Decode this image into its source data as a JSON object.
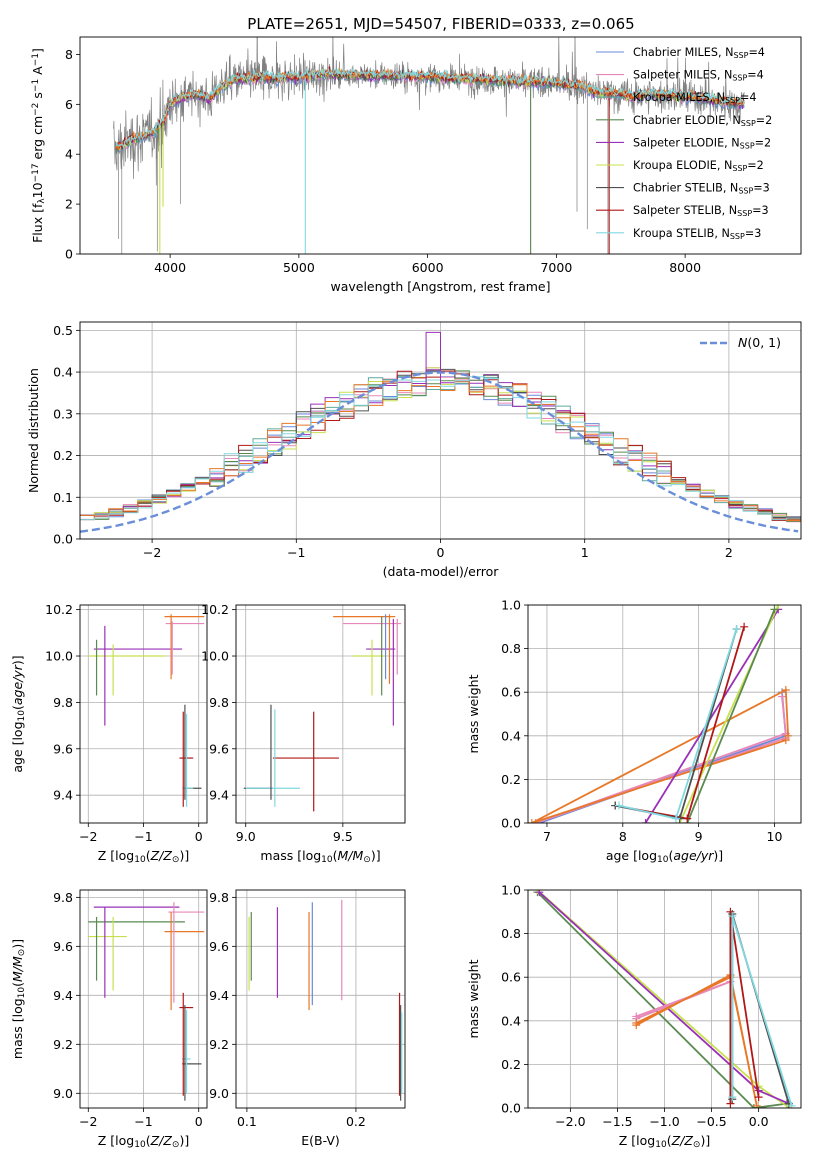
{
  "figure_title": "PLATE=2651, MJD=54507, FIBERID=0333, z=0.065",
  "colors": {
    "chab_miles": "#6a8ad8",
    "salp_miles": "#e888b8",
    "krou_miles": "#60a8a0",
    "chab_elodie": "#5a8a50",
    "salp_elodie": "#9a30b8",
    "krou_elodie": "#c8e050",
    "chab_stelib": "#505050",
    "salp_stelib": "#b01818",
    "krou_stelib": "#80d8e0",
    "orange": "#e87828",
    "data_gray": "#808080",
    "grid": "#b0b0b0"
  },
  "chart_data": [
    {
      "id": "spectrum",
      "type": "line",
      "xlabel": "wavelength [Angstrom, rest frame]",
      "ylabel": "Flux [f_λ10^-17 erg cm^-2 s^-1 A^-1]",
      "xlim": [
        3300,
        8900
      ],
      "ylim": [
        0,
        8.7
      ],
      "xticks": [
        "4000",
        "5000",
        "6000",
        "7000",
        "8000"
      ],
      "yticks": [
        "0",
        "2",
        "4",
        "6",
        "8"
      ],
      "legend_position": "right",
      "legend": [
        {
          "name": "Chabrier MILES, N",
          "sub": "SSP",
          "tail": "=4",
          "color": "chab_miles"
        },
        {
          "name": "Salpeter MILES, N",
          "sub": "SSP",
          "tail": "=4",
          "color": "salp_miles"
        },
        {
          "name": "Kroupa MILES, N",
          "sub": "SSP",
          "tail": "=4",
          "color": "krou_miles"
        },
        {
          "name": "Chabrier ELODIE, N",
          "sub": "SSP",
          "tail": "=2",
          "color": "chab_elodie"
        },
        {
          "name": "Salpeter ELODIE, N",
          "sub": "SSP",
          "tail": "=2",
          "color": "salp_elodie"
        },
        {
          "name": "Kroupa ELODIE, N",
          "sub": "SSP",
          "tail": "=2",
          "color": "krou_elodie"
        },
        {
          "name": "Chabrier STELIB, N",
          "sub": "SSP",
          "tail": "=3",
          "color": "chab_stelib"
        },
        {
          "name": "Salpeter STELIB, N",
          "sub": "SSP",
          "tail": "=3",
          "color": "salp_stelib"
        },
        {
          "name": "Kroupa STELIB, N",
          "sub": "SSP",
          "tail": "=3",
          "color": "krou_stelib"
        }
      ],
      "continuum": {
        "x": [
          3580,
          3650,
          3720,
          3800,
          3880,
          3950,
          4000,
          4100,
          4200,
          4300,
          4400,
          4500,
          4600,
          4700,
          4800,
          4900,
          5000,
          5200,
          5500,
          6000,
          6500,
          7000,
          7200,
          7300,
          7500,
          7600,
          7700,
          8000,
          8300,
          8460
        ],
        "y": [
          4.2,
          4.4,
          4.6,
          4.7,
          4.9,
          5.3,
          6.0,
          6.3,
          6.4,
          6.2,
          6.7,
          7.0,
          7.0,
          7.1,
          7.0,
          7.1,
          7.05,
          7.2,
          7.15,
          7.1,
          6.95,
          6.85,
          6.7,
          6.5,
          6.4,
          6.3,
          6.4,
          6.3,
          6.1,
          6.0
        ]
      },
      "models_x_start": 3580,
      "data_x_start": 3560
    },
    {
      "id": "residuals",
      "type": "line",
      "xlabel": "(data-model)/error",
      "ylabel": "Normed distribution",
      "xlim": [
        -2.5,
        2.5
      ],
      "ylim": [
        0,
        0.52
      ],
      "xticks": [
        "−2",
        "−1",
        "0",
        "1",
        "2"
      ],
      "yticks": [
        "0.0",
        "0.1",
        "0.2",
        "0.3",
        "0.4",
        "0.5"
      ],
      "legend_label": "N(0,1)",
      "legend_position": "upper-right",
      "gaussian": {
        "mu": 0,
        "sigma": 1
      }
    },
    {
      "id": "age_vs_Z",
      "type": "scatter",
      "xlabel": "Z [log10(Z/Z☉)]",
      "ylabel": "age  [log10(age/yr)]",
      "xlim": [
        -2.15,
        0.15
      ],
      "ylim": [
        9.28,
        10.22
      ],
      "xticks": [
        "−2",
        "−1",
        "0"
      ],
      "yticks": [
        "9.4",
        "9.6",
        "9.8",
        "10.0",
        "10.2"
      ],
      "h_errors": [
        {
          "y": 10.17,
          "x1": -0.62,
          "x2": 0.1,
          "color": "orange"
        },
        {
          "y": 10.14,
          "x1": -0.6,
          "x2": 0.1,
          "color": "salp_miles"
        },
        {
          "y": 10.03,
          "x1": -1.9,
          "x2": -0.3,
          "color": "salp_elodie"
        },
        {
          "y": 10.0,
          "x1": -2.0,
          "x2": -0.6,
          "color": "krou_elodie"
        },
        {
          "y": 9.56,
          "x1": -0.35,
          "x2": -0.1,
          "color": "salp_stelib"
        },
        {
          "y": 9.43,
          "x1": -0.25,
          "x2": 0.05,
          "color": "chab_stelib"
        },
        {
          "y": 9.43,
          "x1": -0.3,
          "x2": -0.1,
          "color": "krou_stelib"
        }
      ],
      "v_errors": [
        {
          "x": -1.7,
          "y1": 9.7,
          "y2": 10.13,
          "color": "salp_elodie"
        },
        {
          "x": -1.55,
          "y1": 9.83,
          "y2": 10.05,
          "color": "krou_elodie"
        },
        {
          "x": -1.85,
          "y1": 9.83,
          "y2": 10.07,
          "color": "chab_elodie"
        },
        {
          "x": -0.5,
          "y1": 9.9,
          "y2": 10.18,
          "color": "orange"
        },
        {
          "x": -0.48,
          "y1": 9.92,
          "y2": 10.15,
          "color": "salp_miles"
        },
        {
          "x": -0.28,
          "y1": 9.35,
          "y2": 9.76,
          "color": "salp_stelib"
        },
        {
          "x": -0.25,
          "y1": 9.38,
          "y2": 9.79,
          "color": "chab_stelib"
        },
        {
          "x": -0.22,
          "y1": 9.35,
          "y2": 9.75,
          "color": "krou_stelib"
        }
      ]
    },
    {
      "id": "age_vs_mass",
      "type": "scatter",
      "xlabel": "mass [log10(M/M☉)]",
      "ylabel": "",
      "xlim": [
        8.95,
        9.82
      ],
      "ylim": [
        9.28,
        10.22
      ],
      "xticks": [
        "9.0",
        "9.5"
      ],
      "yticks": [
        "9.4",
        "9.6",
        "9.8",
        "10.0",
        "10.2"
      ],
      "h_errors": [
        {
          "y": 10.17,
          "x1": 9.45,
          "x2": 9.77,
          "color": "orange"
        },
        {
          "y": 10.14,
          "x1": 9.5,
          "x2": 9.8,
          "color": "salp_miles"
        },
        {
          "y": 10.03,
          "x1": 9.62,
          "x2": 9.77,
          "color": "salp_elodie"
        },
        {
          "y": 10.0,
          "x1": 9.55,
          "x2": 9.72,
          "color": "krou_elodie"
        },
        {
          "y": 9.56,
          "x1": 9.14,
          "x2": 9.48,
          "color": "salp_stelib"
        },
        {
          "y": 9.43,
          "x1": 8.99,
          "x2": 9.14,
          "color": "chab_stelib"
        },
        {
          "y": 9.43,
          "x1": 9.0,
          "x2": 9.28,
          "color": "krou_stelib"
        }
      ],
      "v_errors": [
        {
          "x": 9.65,
          "y1": 9.83,
          "y2": 10.07,
          "color": "krou_elodie"
        },
        {
          "x": 9.7,
          "y1": 9.83,
          "y2": 10.17,
          "color": "chab_elodie"
        },
        {
          "x": 9.72,
          "y1": 9.9,
          "y2": 10.18,
          "color": "chab_miles"
        },
        {
          "x": 9.74,
          "y1": 9.88,
          "y2": 10.18,
          "color": "orange"
        },
        {
          "x": 9.76,
          "y1": 9.7,
          "y2": 10.16,
          "color": "salp_elodie"
        },
        {
          "x": 9.78,
          "y1": 9.92,
          "y2": 10.16,
          "color": "salp_miles"
        },
        {
          "x": 9.13,
          "y1": 9.38,
          "y2": 9.79,
          "color": "chab_stelib"
        },
        {
          "x": 9.15,
          "y1": 9.35,
          "y2": 9.77,
          "color": "krou_stelib"
        },
        {
          "x": 9.35,
          "y1": 9.33,
          "y2": 9.76,
          "color": "salp_stelib"
        }
      ]
    },
    {
      "id": "massweight_vs_age",
      "type": "line",
      "xlabel": "age  [log10(age/yr)]",
      "ylabel": "mass weight",
      "xlim": [
        6.75,
        10.35
      ],
      "ylim": [
        0,
        1
      ],
      "xticks": [
        "7",
        "8",
        "9",
        "10"
      ],
      "yticks": [
        "0.0",
        "0.2",
        "0.4",
        "0.6",
        "0.8",
        "1.0"
      ],
      "series": [
        {
          "color": "chab_miles",
          "x": [
            10.15,
            6.9,
            10.15,
            10.1
          ],
          "y": [
            0.4,
            0.0,
            0.4,
            0.6
          ]
        },
        {
          "color": "salp_miles",
          "x": [
            10.15,
            6.85,
            10.15,
            10.1
          ],
          "y": [
            0.39,
            0.0,
            0.41,
            0.58
          ]
        },
        {
          "color": "orange",
          "x": [
            10.15,
            6.8,
            10.15,
            10.18
          ],
          "y": [
            0.38,
            0.0,
            0.61,
            0.4
          ]
        },
        {
          "color": "salp_elodie",
          "x": [
            8.3,
            10.05
          ],
          "y": [
            0.0,
            0.98
          ]
        },
        {
          "color": "krou_elodie",
          "x": [
            8.75,
            10.05
          ],
          "y": [
            0.0,
            1.0
          ]
        },
        {
          "color": "chab_elodie",
          "x": [
            8.85,
            10.0
          ],
          "y": [
            0.0,
            0.98
          ]
        },
        {
          "color": "salp_stelib",
          "x": [
            7.9,
            8.85,
            9.6
          ],
          "y": [
            0.08,
            0.02,
            0.9
          ]
        },
        {
          "color": "chab_stelib",
          "x": [
            7.9,
            8.75,
            9.5
          ],
          "y": [
            0.08,
            0.02,
            0.89
          ]
        },
        {
          "color": "krou_stelib",
          "x": [
            7.95,
            8.7,
            9.5
          ],
          "y": [
            0.08,
            0.02,
            0.89
          ]
        }
      ]
    },
    {
      "id": "mass_vs_Z",
      "type": "scatter",
      "xlabel": "Z [log10(Z/Z☉)]",
      "ylabel": "mass [log10(M/M☉)]",
      "xlim": [
        -2.15,
        0.15
      ],
      "ylim": [
        8.94,
        9.83
      ],
      "xticks": [
        "−2",
        "−1",
        "0"
      ],
      "yticks": [
        "9.0",
        "9.2",
        "9.4",
        "9.6",
        "9.8"
      ],
      "h_errors": [
        {
          "y": 9.76,
          "x1": -1.9,
          "x2": -0.35,
          "color": "salp_elodie"
        },
        {
          "y": 9.74,
          "x1": -0.55,
          "x2": 0.1,
          "color": "salp_miles"
        },
        {
          "y": 9.7,
          "x1": -2.0,
          "x2": -0.25,
          "color": "chab_elodie"
        },
        {
          "y": 9.66,
          "x1": -0.62,
          "x2": 0.1,
          "color": "orange"
        },
        {
          "y": 9.64,
          "x1": -2.0,
          "x2": -1.3,
          "color": "krou_elodie"
        },
        {
          "y": 9.35,
          "x1": -0.35,
          "x2": -0.1,
          "color": "salp_stelib"
        },
        {
          "y": 9.12,
          "x1": -0.3,
          "x2": 0.05,
          "color": "chab_stelib"
        },
        {
          "y": 9.14,
          "x1": -0.3,
          "x2": -0.15,
          "color": "krou_stelib"
        }
      ],
      "v_errors": [
        {
          "x": -1.7,
          "y1": 9.39,
          "y2": 9.76,
          "color": "salp_elodie"
        },
        {
          "x": -1.85,
          "y1": 9.46,
          "y2": 9.72,
          "color": "chab_elodie"
        },
        {
          "x": -1.55,
          "y1": 9.42,
          "y2": 9.72,
          "color": "krou_elodie"
        },
        {
          "x": -0.5,
          "y1": 9.34,
          "y2": 9.74,
          "color": "orange"
        },
        {
          "x": -0.45,
          "y1": 9.37,
          "y2": 9.78,
          "color": "salp_miles"
        },
        {
          "x": -0.28,
          "y1": 8.99,
          "y2": 9.41,
          "color": "salp_stelib"
        },
        {
          "x": -0.25,
          "y1": 8.97,
          "y2": 9.36,
          "color": "chab_stelib"
        },
        {
          "x": -0.22,
          "y1": 9.0,
          "y2": 9.34,
          "color": "krou_stelib"
        }
      ]
    },
    {
      "id": "mass_vs_ebv",
      "type": "scatter",
      "xlabel": "E(B-V)",
      "ylabel": "",
      "xlim": [
        0.09,
        0.245
      ],
      "ylim": [
        8.94,
        9.83
      ],
      "xticks": [
        "0.1",
        "0.2"
      ],
      "yticks": [
        "9.0",
        "9.2",
        "9.4",
        "9.6",
        "9.8"
      ],
      "v_errors": [
        {
          "x": 0.102,
          "y1": 9.42,
          "y2": 9.72,
          "color": "krou_elodie"
        },
        {
          "x": 0.104,
          "y1": 9.46,
          "y2": 9.74,
          "color": "chab_elodie"
        },
        {
          "x": 0.128,
          "y1": 9.39,
          "y2": 9.76,
          "color": "salp_elodie"
        },
        {
          "x": 0.157,
          "y1": 9.34,
          "y2": 9.74,
          "color": "orange"
        },
        {
          "x": 0.16,
          "y1": 9.36,
          "y2": 9.78,
          "color": "chab_miles"
        },
        {
          "x": 0.187,
          "y1": 9.38,
          "y2": 9.79,
          "color": "salp_miles"
        },
        {
          "x": 0.24,
          "y1": 8.99,
          "y2": 9.41,
          "color": "salp_stelib"
        },
        {
          "x": 0.241,
          "y1": 8.97,
          "y2": 9.36,
          "color": "chab_stelib"
        },
        {
          "x": 0.242,
          "y1": 9.0,
          "y2": 9.33,
          "color": "krou_stelib"
        }
      ]
    },
    {
      "id": "massweight_vs_Z",
      "type": "line",
      "xlabel": "Z [log10(Z/Z☉)]",
      "ylabel": "mass weight",
      "xlim": [
        -2.45,
        0.45
      ],
      "ylim": [
        0,
        1
      ],
      "xticks": [
        "−2.0",
        "−1.5",
        "−1.0",
        "−0.5",
        "0.0"
      ],
      "yticks": [
        "0.0",
        "0.2",
        "0.4",
        "0.6",
        "0.8",
        "1.0"
      ],
      "series": [
        {
          "color": "chab_elodie",
          "x": [
            -2.35,
            -0.05,
            0.3
          ],
          "y": [
            0.99,
            0.0,
            0.02
          ]
        },
        {
          "color": "krou_elodie",
          "x": [
            -2.35,
            0.0,
            0.33
          ],
          "y": [
            1.0,
            0.1,
            0.0
          ]
        },
        {
          "color": "salp_elodie",
          "x": [
            -2.33,
            0.0,
            0.32
          ],
          "y": [
            0.99,
            0.08,
            0.02
          ]
        },
        {
          "color": "salp_miles",
          "x": [
            -1.3,
            -0.3,
            -1.3
          ],
          "y": [
            0.42,
            0.58,
            0.41
          ]
        },
        {
          "color": "orange",
          "x": [
            -1.3,
            -0.3,
            -0.02,
            -0.3,
            -1.3
          ],
          "y": [
            0.38,
            0.61,
            0.01,
            0.6,
            0.39
          ]
        },
        {
          "color": "salp_stelib",
          "x": [
            -0.3,
            -0.3,
            0.0
          ],
          "y": [
            0.02,
            0.9,
            0.05
          ]
        },
        {
          "color": "chab_stelib",
          "x": [
            -0.28,
            -0.28,
            0.32
          ],
          "y": [
            0.04,
            0.89,
            0.02
          ]
        },
        {
          "color": "krou_stelib",
          "x": [
            -0.28,
            -0.28,
            0.35
          ],
          "y": [
            0.05,
            0.88,
            0.01
          ]
        }
      ]
    }
  ]
}
